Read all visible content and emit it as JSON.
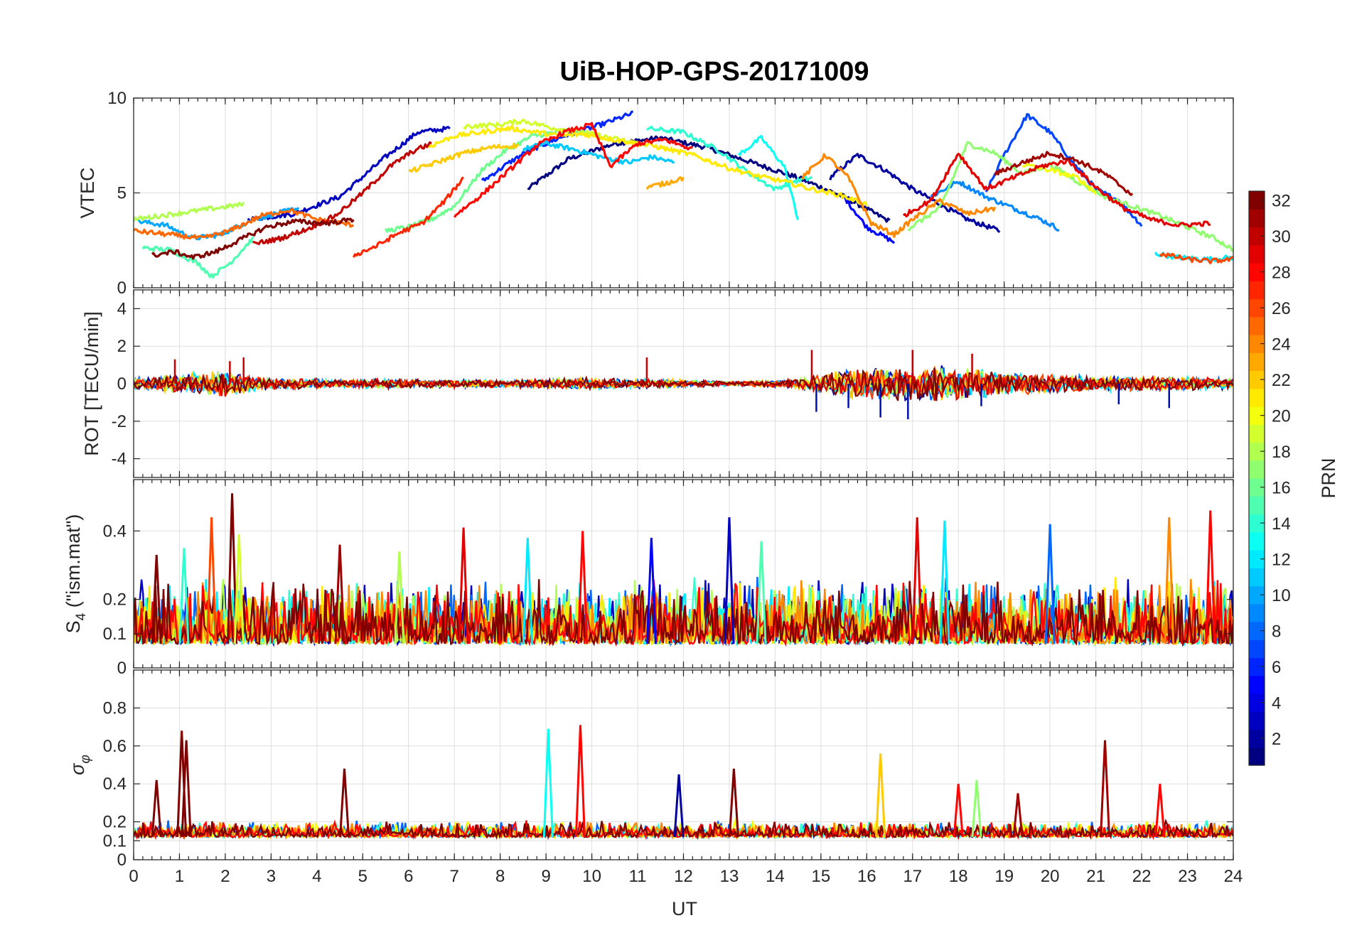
{
  "chart_data": {
    "type": "line",
    "title": "UiB-HOP-GPS-20171009",
    "xlabel": "UT",
    "xlim": [
      0,
      24
    ],
    "x_ticks": [
      0,
      1,
      2,
      3,
      4,
      5,
      6,
      7,
      8,
      9,
      10,
      11,
      12,
      13,
      14,
      15,
      16,
      17,
      18,
      19,
      20,
      21,
      22,
      23,
      24
    ],
    "grid": true,
    "colorbar": {
      "label": "PRN",
      "range": [
        1,
        32
      ],
      "ticks": [
        2,
        4,
        6,
        8,
        10,
        12,
        14,
        16,
        18,
        20,
        22,
        24,
        26,
        28,
        30,
        32
      ],
      "colormap": "jet",
      "placement": "right"
    },
    "panels": [
      {
        "id": "vtec",
        "ylabel": "VTEC",
        "ylim": [
          0,
          10
        ],
        "y_ticks": [
          0,
          5,
          10
        ],
        "series": [
          {
            "prn": 1,
            "x": [
              8.6,
              9.5,
              10.5,
              11.5,
              12.5,
              13.5,
              14.5,
              15.5,
              16.5
            ],
            "y": [
              5.2,
              6.8,
              7.6,
              7.9,
              7.4,
              6.6,
              5.8,
              4.8,
              3.5
            ]
          },
          {
            "prn": 2,
            "x": [
              15.2,
              15.8,
              16.4,
              17.0,
              17.6,
              18.2,
              18.9
            ],
            "y": [
              5.8,
              7.0,
              6.2,
              5.2,
              4.4,
              3.6,
              3.0
            ]
          },
          {
            "prn": 3,
            "x": [
              2.5,
              3.5,
              4.5,
              5.5,
              6.2,
              6.9
            ],
            "y": [
              3.6,
              3.9,
              4.8,
              6.9,
              8.2,
              8.4
            ]
          },
          {
            "prn": 5,
            "x": [
              15.5,
              16.0,
              16.6
            ],
            "y": [
              4.8,
              3.2,
              2.4
            ]
          },
          {
            "prn": 6,
            "x": [
              7.6,
              8.2,
              8.6,
              9.4,
              10.2,
              10.9
            ],
            "y": [
              5.6,
              6.6,
              7.2,
              8.0,
              8.6,
              9.2
            ]
          },
          {
            "prn": 7,
            "x": [
              18.6,
              19.0,
              19.5,
              20.0,
              20.5,
              21.0,
              21.5,
              22.0
            ],
            "y": [
              5.0,
              7.0,
              9.1,
              8.2,
              6.6,
              5.2,
              4.6,
              3.3
            ]
          },
          {
            "prn": 9,
            "x": [
              17.4,
              18.0,
              18.6,
              19.2,
              19.8,
              20.2
            ],
            "y": [
              4.8,
              5.6,
              4.8,
              4.2,
              3.6,
              3.1
            ]
          },
          {
            "prn": 10,
            "x": [
              0.1,
              0.7,
              1.3,
              1.9,
              2.5,
              3.1,
              3.6
            ],
            "y": [
              3.5,
              3.3,
              2.6,
              2.8,
              3.5,
              3.9,
              4.2
            ]
          },
          {
            "prn": 11,
            "x": [
              8.5,
              9.0,
              9.6,
              10.2,
              10.8,
              11.3,
              11.8
            ],
            "y": [
              7.3,
              7.6,
              7.3,
              6.9,
              6.6,
              6.9,
              6.6
            ]
          },
          {
            "prn": 12,
            "x": [
              22.3,
              22.8,
              23.4,
              24.0
            ],
            "y": [
              1.8,
              1.6,
              1.5,
              1.6
            ]
          },
          {
            "prn": 13,
            "x": [
              13.2,
              13.7,
              14.2,
              14.5
            ],
            "y": [
              7.0,
              7.9,
              6.4,
              3.6
            ]
          },
          {
            "prn": 14,
            "x": [
              11.2,
              12.0,
              12.8,
              13.4,
              14.0,
              14.4,
              14.8
            ],
            "y": [
              8.4,
              8.2,
              7.2,
              6.1,
              5.2,
              5.6,
              5.8
            ]
          },
          {
            "prn": 15,
            "x": [
              0.2,
              0.8,
              1.4,
              1.7,
              2.1,
              2.6
            ],
            "y": [
              2.1,
              2.0,
              1.3,
              0.6,
              1.3,
              2.6
            ]
          },
          {
            "prn": 16,
            "x": [
              5.5,
              6.0,
              6.5,
              7.0,
              7.6,
              8.1,
              8.7,
              9.5,
              10.2
            ],
            "y": [
              3.0,
              3.2,
              3.6,
              4.3,
              6.2,
              7.2,
              8.0,
              8.3,
              8.0
            ]
          },
          {
            "prn": 17,
            "x": [
              16.9,
              17.6,
              18.2,
              18.8,
              19.4,
              20.0,
              20.6,
              21.2,
              21.8,
              22.4,
              23.0,
              23.6,
              24.0
            ],
            "y": [
              3.1,
              4.2,
              7.6,
              7.1,
              6.0,
              6.5,
              5.6,
              4.8,
              4.3,
              3.8,
              3.2,
              2.6,
              2.0
            ]
          },
          {
            "prn": 18,
            "x": [
              0.0,
              0.6,
              1.2,
              1.8,
              2.4
            ],
            "y": [
              3.6,
              3.8,
              4.0,
              4.2,
              4.4
            ]
          },
          {
            "prn": 19,
            "x": [
              7.2,
              8.0,
              8.5,
              9.2,
              9.8,
              10.6,
              11.2
            ],
            "y": [
              8.5,
              8.6,
              8.8,
              8.4,
              8.2,
              7.8,
              7.5
            ]
          },
          {
            "prn": 20,
            "x": [
              19.4,
              20.0,
              20.6,
              21.0
            ],
            "y": [
              6.5,
              6.2,
              5.8,
              5.0
            ]
          },
          {
            "prn": 21,
            "x": [
              6.4,
              7.0,
              7.6,
              8.2,
              8.8,
              9.3,
              9.8,
              10.5,
              11.3,
              12.2,
              13.0,
              13.6,
              14.2,
              14.8,
              15.4,
              16.0
            ],
            "y": [
              7.4,
              8.0,
              8.2,
              8.4,
              8.2,
              8.0,
              8.1,
              7.8,
              7.5,
              7.0,
              6.3,
              5.9,
              5.6,
              5.2,
              4.9,
              4.4
            ]
          },
          {
            "prn": 22,
            "x": [
              6.0,
              6.6,
              7.2,
              7.8,
              8.4
            ],
            "y": [
              6.1,
              6.6,
              7.1,
              7.4,
              7.5
            ]
          },
          {
            "prn": 23,
            "x": [
              11.2,
              11.6,
              12.0
            ],
            "y": [
              5.3,
              5.5,
              5.8
            ]
          },
          {
            "prn": 24,
            "x": [
              14.6,
              15.1,
              15.6,
              16.1,
              16.6,
              17.0,
              17.6,
              18.2,
              18.8
            ],
            "y": [
              5.8,
              7.0,
              5.8,
              3.4,
              2.8,
              3.6,
              4.6,
              3.9,
              4.2
            ]
          },
          {
            "prn": 25,
            "x": [
              0.0,
              0.8,
              1.5,
              2.1,
              2.8,
              3.4,
              4.0,
              4.8
            ],
            "y": [
              3.0,
              2.8,
              2.6,
              3.0,
              3.8,
              4.1,
              3.6,
              3.3
            ]
          },
          {
            "prn": 26,
            "x": [
              22.4,
              23.0,
              23.5,
              24.0
            ],
            "y": [
              1.8,
              1.5,
              1.4,
              1.5
            ]
          },
          {
            "prn": 27,
            "x": [
              4.8,
              5.3,
              5.8,
              6.3,
              6.8,
              7.2
            ],
            "y": [
              1.7,
              2.2,
              2.9,
              3.4,
              4.6,
              5.8
            ]
          },
          {
            "prn": 28,
            "x": [
              7.0,
              7.6,
              8.2,
              8.8,
              9.4,
              10.0,
              10.4,
              11.0,
              11.6,
              12.2
            ],
            "y": [
              3.8,
              4.9,
              6.2,
              7.5,
              8.2,
              8.6,
              6.4,
              7.6,
              7.8,
              7.3
            ]
          },
          {
            "prn": 29,
            "x": [
              16.8,
              17.4,
              18.0,
              18.6,
              19.2,
              19.8,
              20.4,
              21.0,
              21.6,
              22.2,
              22.8,
              23.5
            ],
            "y": [
              3.8,
              4.6,
              7.1,
              5.2,
              5.8,
              6.4,
              6.7,
              5.3,
              4.2,
              3.6,
              3.3,
              3.4
            ]
          },
          {
            "prn": 30,
            "x": [
              2.6,
              3.2,
              3.8,
              4.4,
              5.0,
              5.6,
              6.1,
              6.5
            ],
            "y": [
              2.3,
              2.6,
              3.1,
              3.8,
              5.0,
              6.4,
              7.2,
              7.6
            ]
          },
          {
            "prn": 31,
            "x": [
              18.8,
              19.4,
              20.0,
              20.6,
              21.2,
              21.8
            ],
            "y": [
              6.0,
              6.6,
              7.1,
              6.7,
              6.0,
              4.9
            ]
          },
          {
            "prn": 32,
            "x": [
              0.4,
              0.9,
              1.3,
              1.8,
              2.3,
              2.9,
              3.5,
              4.2,
              4.8
            ],
            "y": [
              1.7,
              1.9,
              1.6,
              1.9,
              2.5,
              3.2,
              3.5,
              3.4,
              3.6
            ]
          }
        ]
      },
      {
        "id": "rot",
        "ylabel": "ROT [TECU/min]",
        "ylim": [
          -5,
          5
        ],
        "y_ticks": [
          -4,
          -2,
          0,
          2,
          4
        ],
        "series_note": "",
        "bands": [
          {
            "x": [
              0,
              2,
              3,
              4.5,
              5,
              8,
              9,
              10,
              11,
              12,
              13,
              14,
              14.5,
              15.5,
              16.5,
              17.5,
              18.5,
              19.5,
              20.5,
              21.5,
              22.5,
              23.5,
              24
            ],
            "amp": [
              0.5,
              1.0,
              0.5,
              0.3,
              0.4,
              0.3,
              0.4,
              0.5,
              0.4,
              0.3,
              0.2,
              0.3,
              0.4,
              1.2,
              1.4,
              1.5,
              1.2,
              0.8,
              0.7,
              0.6,
              0.6,
              0.5,
              0.4
            ]
          }
        ],
        "spikes": [
          {
            "x": 0.9,
            "y": 1.3
          },
          {
            "x": 2.1,
            "y": 1.2
          },
          {
            "x": 2.4,
            "y": 1.4
          },
          {
            "x": 11.2,
            "y": 1.4
          },
          {
            "x": 14.8,
            "y": 1.8
          },
          {
            "x": 14.9,
            "y": -1.5
          },
          {
            "x": 15.6,
            "y": -1.3
          },
          {
            "x": 16.3,
            "y": -1.8
          },
          {
            "x": 16.9,
            "y": -1.9
          },
          {
            "x": 17.0,
            "y": 1.8
          },
          {
            "x": 18.3,
            "y": 1.6
          },
          {
            "x": 18.5,
            "y": -1.2
          },
          {
            "x": 21.5,
            "y": -1.1
          },
          {
            "x": 22.6,
            "y": -1.3
          }
        ]
      },
      {
        "id": "s4",
        "ylabel": "S4 (\"ism.mat\")",
        "ylim": [
          0,
          0.55
        ],
        "y_ticks": [
          0,
          0.1,
          0.2,
          0.4
        ],
        "spikes": [
          {
            "x": 0.5,
            "y": 0.33,
            "prn": 32
          },
          {
            "x": 1.1,
            "y": 0.35,
            "prn": 14
          },
          {
            "x": 1.7,
            "y": 0.44,
            "prn": 26
          },
          {
            "x": 2.15,
            "y": 0.51,
            "prn": 32
          },
          {
            "x": 2.3,
            "y": 0.39,
            "prn": 19
          },
          {
            "x": 4.5,
            "y": 0.36,
            "prn": 31
          },
          {
            "x": 5.8,
            "y": 0.34,
            "prn": 18
          },
          {
            "x": 7.2,
            "y": 0.41,
            "prn": 29
          },
          {
            "x": 8.6,
            "y": 0.38,
            "prn": 12
          },
          {
            "x": 9.8,
            "y": 0.4,
            "prn": 28
          },
          {
            "x": 11.3,
            "y": 0.38,
            "prn": 5
          },
          {
            "x": 13.0,
            "y": 0.44,
            "prn": 3
          },
          {
            "x": 13.7,
            "y": 0.37,
            "prn": 15
          },
          {
            "x": 17.1,
            "y": 0.44,
            "prn": 29
          },
          {
            "x": 17.7,
            "y": 0.43,
            "prn": 12
          },
          {
            "x": 20.0,
            "y": 0.42,
            "prn": 8
          },
          {
            "x": 22.6,
            "y": 0.44,
            "prn": 24
          },
          {
            "x": 23.5,
            "y": 0.46,
            "prn": 28
          }
        ]
      },
      {
        "id": "sigma_phi",
        "ylabel": "σφ",
        "ylim": [
          0,
          1
        ],
        "y_ticks": [
          0,
          0.1,
          0.2,
          0.4,
          0.6,
          0.8
        ],
        "spikes": [
          {
            "x": 0.5,
            "y": 0.42,
            "prn": 32
          },
          {
            "x": 1.05,
            "y": 0.68,
            "prn": 32
          },
          {
            "x": 1.15,
            "y": 0.63,
            "prn": 32
          },
          {
            "x": 4.6,
            "y": 0.48,
            "prn": 32
          },
          {
            "x": 9.05,
            "y": 0.69,
            "prn": 13
          },
          {
            "x": 9.75,
            "y": 0.71,
            "prn": 28
          },
          {
            "x": 11.9,
            "y": 0.45,
            "prn": 2
          },
          {
            "x": 13.1,
            "y": 0.48,
            "prn": 32
          },
          {
            "x": 16.3,
            "y": 0.56,
            "prn": 22
          },
          {
            "x": 18.0,
            "y": 0.4,
            "prn": 28
          },
          {
            "x": 18.4,
            "y": 0.42,
            "prn": 17
          },
          {
            "x": 19.3,
            "y": 0.35,
            "prn": 31
          },
          {
            "x": 21.2,
            "y": 0.63,
            "prn": 31
          },
          {
            "x": 22.4,
            "y": 0.4,
            "prn": 28
          }
        ]
      }
    ]
  }
}
